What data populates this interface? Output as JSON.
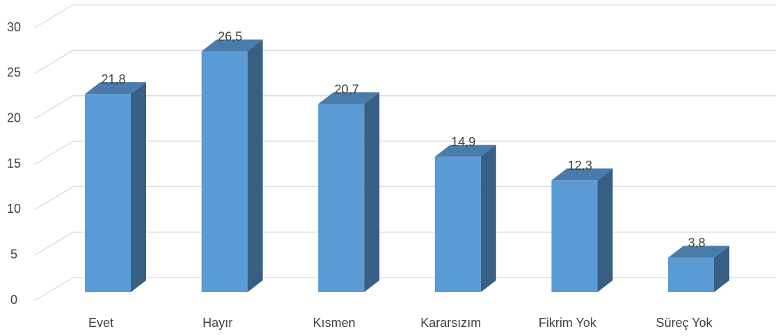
{
  "chart_data": {
    "type": "bar3d",
    "categories": [
      "Evet",
      "Hayır",
      "Kısmen",
      "Kararsızım",
      "Fikrim Yok",
      "Süreç Yok"
    ],
    "values": [
      21.8,
      26.5,
      20.7,
      14.9,
      12.3,
      3.8
    ],
    "value_labels": [
      "21,8",
      "26,5",
      "20,7",
      "14,9",
      "12,3",
      "3,8"
    ],
    "color": "#5b9bd5",
    "ylim": [
      0,
      30
    ],
    "yticks": [
      0,
      5,
      10,
      15,
      20,
      25,
      30
    ],
    "grid": true
  }
}
